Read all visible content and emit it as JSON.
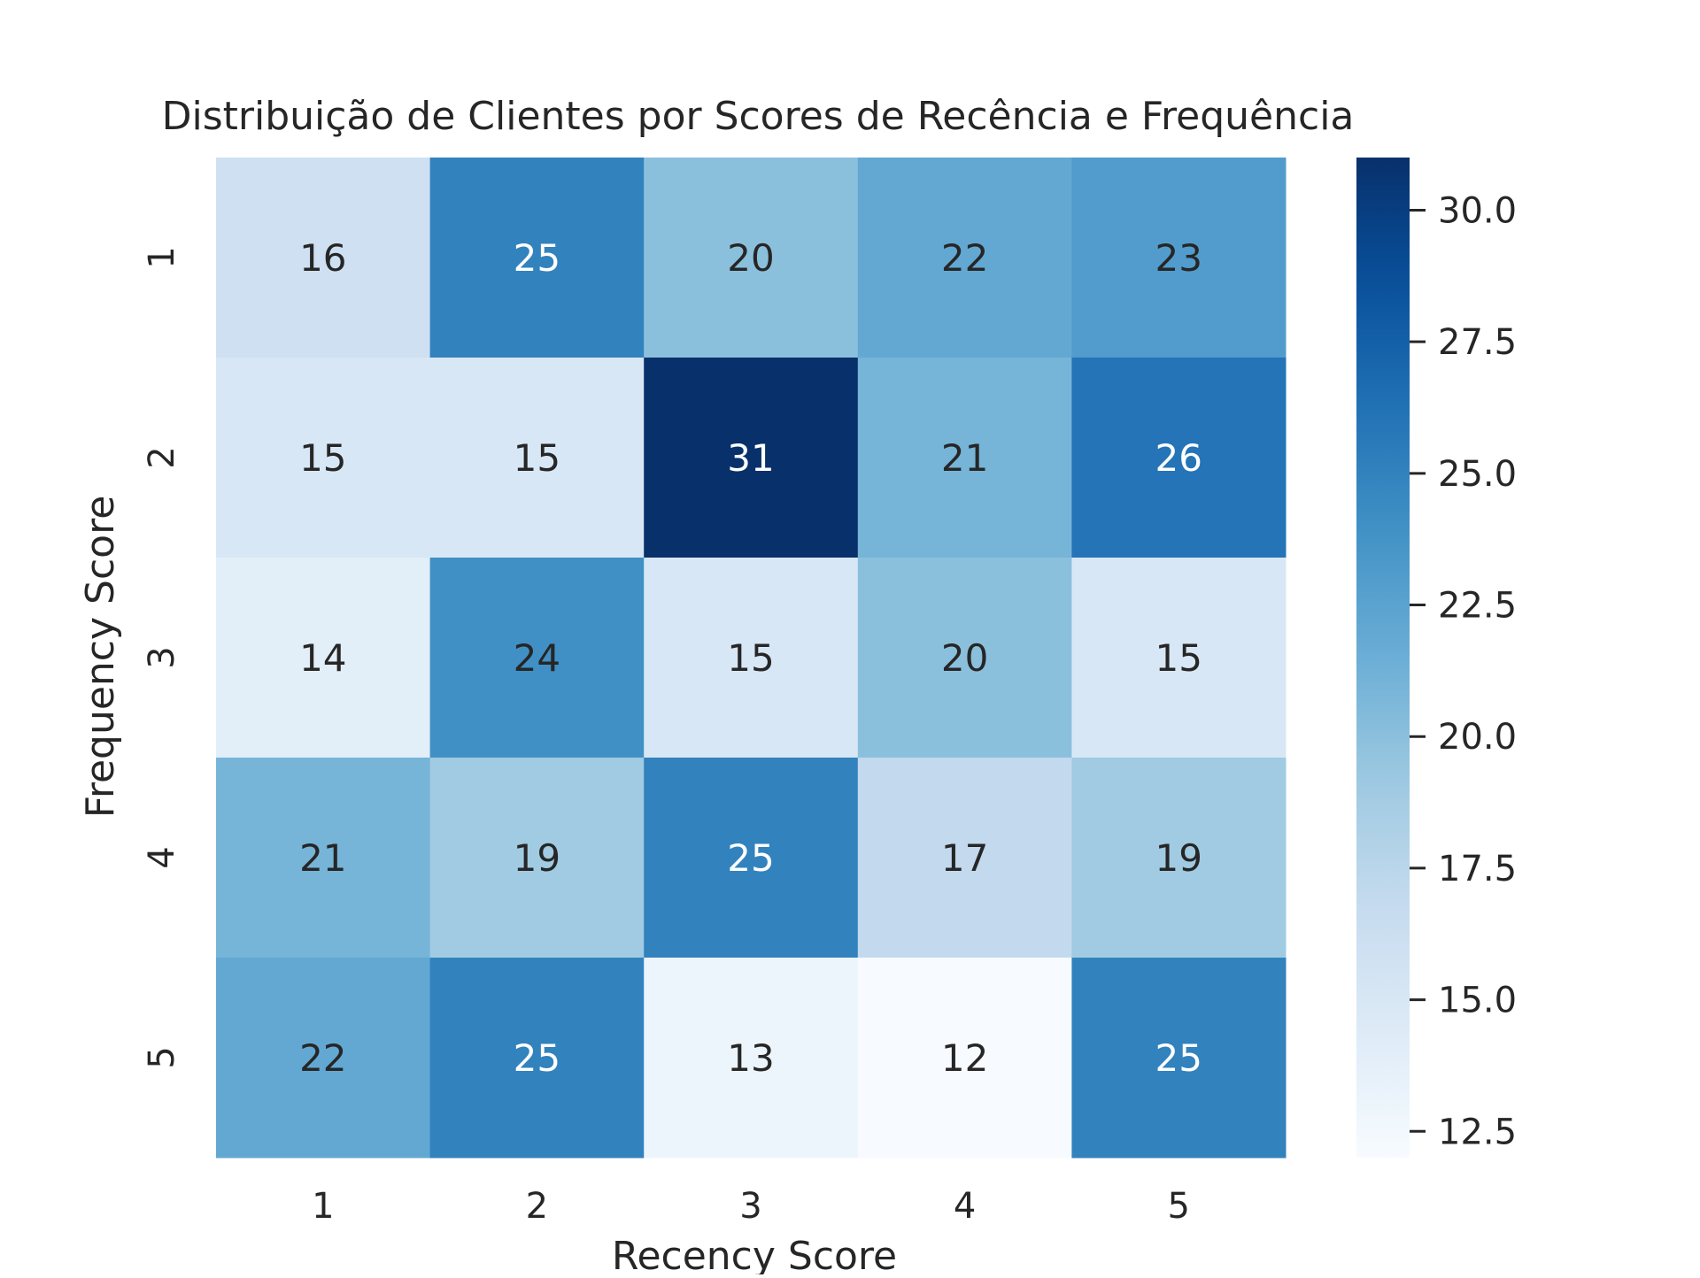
{
  "chart_data": {
    "type": "heatmap",
    "title": "Distribuição de Clientes por Scores de Recência e Frequência",
    "xlabel": "Recency Score",
    "ylabel": "Frequency Score",
    "x_categories": [
      "1",
      "2",
      "3",
      "4",
      "5"
    ],
    "y_categories": [
      "1",
      "2",
      "3",
      "4",
      "5"
    ],
    "values": [
      [
        16,
        25,
        20,
        22,
        23
      ],
      [
        15,
        15,
        31,
        21,
        26
      ],
      [
        14,
        24,
        15,
        20,
        15
      ],
      [
        21,
        19,
        25,
        17,
        19
      ],
      [
        22,
        25,
        13,
        12,
        25
      ]
    ],
    "colormap": "Blues",
    "colorbar": {
      "range": [
        12,
        31
      ],
      "ticks": [
        12.5,
        15.0,
        17.5,
        20.0,
        22.5,
        25.0,
        27.5,
        30.0
      ],
      "tick_labels": [
        "12.5",
        "15.0",
        "17.5",
        "20.0",
        "22.5",
        "25.0",
        "27.5",
        "30.0"
      ]
    },
    "annotations": true
  }
}
